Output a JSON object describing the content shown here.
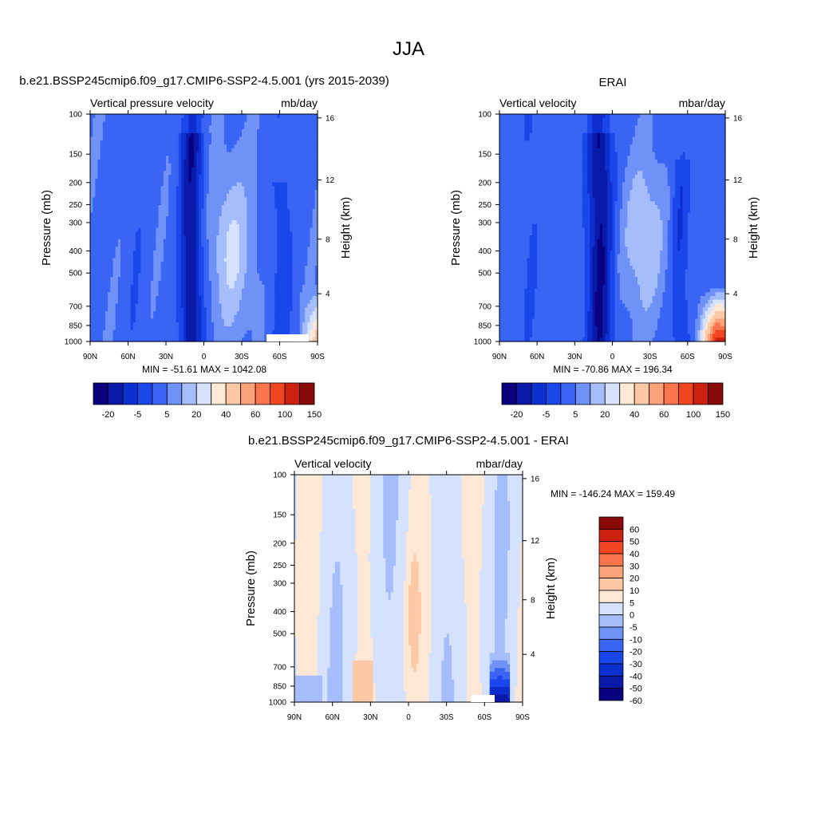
{
  "page": {
    "title": "JJA"
  },
  "colors": {
    "full_scale": [
      "#08007f",
      "#0a1aa8",
      "#0d2fd0",
      "#1a47ec",
      "#3a64f4",
      "#6f92f7",
      "#a5bdfb",
      "#d4e2fd",
      "#fde8d6",
      "#fcc8a6",
      "#fca27a",
      "#f9744a",
      "#f04520",
      "#cc2010",
      "#8a0909"
    ],
    "diff_scale": [
      "#08007f",
      "#0a1aa8",
      "#0d2fd0",
      "#1a47ec",
      "#3a64f4",
      "#6f92f7",
      "#a5bdfb",
      "#d4e2fd",
      "#fde8d6",
      "#fcc8a6",
      "#fca27a",
      "#f9744a",
      "#f04520",
      "#cc2010",
      "#8a0909"
    ]
  },
  "chart_data": [
    {
      "type": "heatmap",
      "title": "b.e21.BSSP245cmip6.f09_g17.CMIP6-SSP2-4.5.001 (yrs 2015-2039)",
      "left_label": "Vertical pressure velocity",
      "right_label": "mb/day",
      "ylabel": "Pressure (mb)",
      "y2label": "Height (km)",
      "x_ticks": [
        "90N",
        "60N",
        "30N",
        "0",
        "30S",
        "60S",
        "90S"
      ],
      "y_ticks": [
        "100",
        "150",
        "200",
        "250",
        "300",
        "400",
        "500",
        "700",
        "850",
        "1000"
      ],
      "y2_ticks": [
        "16",
        "12",
        "8",
        "4"
      ],
      "stats": "MIN = -51.61  MAX = 1042.08",
      "colorbar_labels": [
        "-20",
        "-5",
        "5",
        "20",
        "40",
        "60",
        "100",
        "150"
      ],
      "data_range": [
        -51.61,
        1042.08
      ]
    },
    {
      "type": "heatmap",
      "title": "ERAI",
      "left_label": "Vertical velocity",
      "right_label": "mbar/day",
      "ylabel": "Pressure (mb)",
      "y2label": "Height (km)",
      "x_ticks": [
        "90N",
        "60N",
        "30N",
        "0",
        "30S",
        "60S",
        "90S"
      ],
      "y_ticks": [
        "100",
        "150",
        "200",
        "250",
        "300",
        "400",
        "500",
        "700",
        "850",
        "1000"
      ],
      "y2_ticks": [
        "16",
        "12",
        "8",
        "4"
      ],
      "stats": "MIN = -70.86  MAX = 196.34",
      "colorbar_labels": [
        "-20",
        "-5",
        "5",
        "20",
        "40",
        "60",
        "100",
        "150"
      ],
      "data_range": [
        -70.86,
        196.34
      ]
    },
    {
      "type": "heatmap",
      "title": "b.e21.BSSP245cmip6.f09_g17.CMIP6-SSP2-4.5.001 - ERAI",
      "left_label": "Vertical velocity",
      "right_label": "mbar/day",
      "ylabel": "Pressure (mb)",
      "y2label": "Height (km)",
      "x_ticks": [
        "90N",
        "60N",
        "30N",
        "0",
        "30S",
        "60S",
        "90S"
      ],
      "y_ticks": [
        "100",
        "150",
        "200",
        "250",
        "300",
        "400",
        "500",
        "700",
        "850",
        "1000"
      ],
      "y2_ticks": [
        "16",
        "12",
        "8",
        "4"
      ],
      "stats": "MIN = -146.24  MAX = 159.49",
      "colorbar_labels": [
        "60",
        "50",
        "40",
        "30",
        "20",
        "10",
        "5",
        "0",
        "-5",
        "-10",
        "-20",
        "-30",
        "-40",
        "-50",
        "-60"
      ],
      "data_range": [
        -146.24,
        159.49
      ]
    }
  ]
}
